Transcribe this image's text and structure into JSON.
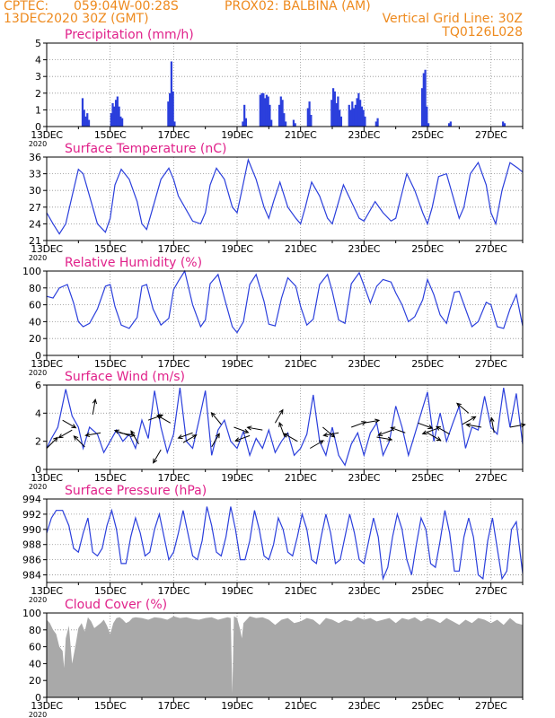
{
  "header": {
    "line1_left": "CPTEC:",
    "line1_coords": "059:04W-00:28S",
    "line1_station": "PROX02: BALBINA (AM)",
    "line2_left": "13DEC2020 30Z (GMT)",
    "line2_right": "Vertical Grid Line: 30Z",
    "line3_right": "TQ0126L028"
  },
  "colors": {
    "header": "#ee8a1e",
    "title": "#e0218a",
    "series": "#2b3fdc",
    "cloud": "#a9a9a9",
    "grid": "#909090"
  },
  "x_axis": {
    "days": 15,
    "tick_labels": [
      "13DEC",
      "15DEC",
      "17DEC",
      "19DEC",
      "21DEC",
      "23DEC",
      "25DEC",
      "27DEC"
    ],
    "tick_days": [
      0,
      2,
      4,
      6,
      8,
      10,
      12,
      14
    ],
    "year_label": "2020"
  },
  "chart_data": [
    {
      "name": "precip",
      "type": "bar",
      "title": "Precipitation (mm/h)",
      "ylim": [
        0,
        5
      ],
      "yticks": [
        0,
        1,
        2,
        3,
        4,
        5
      ],
      "bars": [
        [
          1.1,
          1.7
        ],
        [
          1.15,
          1.0
        ],
        [
          1.2,
          0.6
        ],
        [
          1.25,
          0.8
        ],
        [
          1.3,
          0.4
        ],
        [
          2.0,
          0.8
        ],
        [
          2.05,
          1.4
        ],
        [
          2.1,
          1.2
        ],
        [
          2.15,
          1.6
        ],
        [
          2.2,
          1.8
        ],
        [
          2.25,
          1.2
        ],
        [
          2.3,
          0.6
        ],
        [
          2.35,
          0.5
        ],
        [
          3.8,
          1.5
        ],
        [
          3.85,
          2.0
        ],
        [
          3.9,
          3.9
        ],
        [
          3.95,
          2.1
        ],
        [
          4.0,
          0.3
        ],
        [
          6.15,
          0.3
        ],
        [
          6.2,
          1.3
        ],
        [
          6.25,
          0.5
        ],
        [
          6.7,
          1.9
        ],
        [
          6.75,
          2.0
        ],
        [
          6.8,
          2.0
        ],
        [
          6.85,
          1.7
        ],
        [
          6.9,
          1.9
        ],
        [
          6.95,
          1.8
        ],
        [
          7.0,
          1.3
        ],
        [
          7.05,
          0.4
        ],
        [
          7.3,
          1.3
        ],
        [
          7.35,
          1.8
        ],
        [
          7.4,
          1.6
        ],
        [
          7.45,
          0.8
        ],
        [
          7.5,
          0.3
        ],
        [
          7.75,
          0.4
        ],
        [
          7.8,
          0.2
        ],
        [
          8.2,
          1.1
        ],
        [
          8.25,
          1.5
        ],
        [
          8.3,
          0.7
        ],
        [
          8.95,
          1.6
        ],
        [
          9.0,
          2.3
        ],
        [
          9.05,
          2.1
        ],
        [
          9.1,
          1.4
        ],
        [
          9.15,
          1.8
        ],
        [
          9.2,
          1.0
        ],
        [
          9.25,
          0.6
        ],
        [
          9.5,
          1.3
        ],
        [
          9.55,
          1.0
        ],
        [
          9.6,
          1.5
        ],
        [
          9.65,
          1.1
        ],
        [
          9.7,
          1.3
        ],
        [
          9.75,
          1.7
        ],
        [
          9.8,
          2.0
        ],
        [
          9.85,
          1.6
        ],
        [
          9.9,
          1.2
        ],
        [
          9.95,
          1.0
        ],
        [
          10.0,
          0.6
        ],
        [
          10.35,
          0.3
        ],
        [
          10.4,
          0.5
        ],
        [
          11.8,
          2.3
        ],
        [
          11.85,
          3.2
        ],
        [
          11.9,
          3.4
        ],
        [
          11.95,
          1.2
        ],
        [
          12.0,
          0.2
        ],
        [
          12.65,
          0.2
        ],
        [
          12.7,
          0.3
        ],
        [
          14.35,
          0.3
        ],
        [
          14.4,
          0.2
        ]
      ]
    },
    {
      "name": "temp",
      "type": "line",
      "title": "Surface Temperature (nC)",
      "ylim": [
        21,
        36
      ],
      "yticks": [
        21,
        24,
        27,
        30,
        33,
        36
      ],
      "ytick_labels": [
        "21",
        "24",
        "27",
        "30",
        "33",
        "36"
      ],
      "x": [
        0,
        0.2,
        0.4,
        0.6,
        0.8,
        1.0,
        1.15,
        1.35,
        1.6,
        1.85,
        2.0,
        2.15,
        2.35,
        2.6,
        2.85,
        3.0,
        3.15,
        3.35,
        3.6,
        3.85,
        4.0,
        4.15,
        4.3,
        4.6,
        4.85,
        5.0,
        5.15,
        5.35,
        5.6,
        5.85,
        6.0,
        6.15,
        6.35,
        6.6,
        6.85,
        7.0,
        7.15,
        7.35,
        7.6,
        7.85,
        8.0,
        8.15,
        8.35,
        8.6,
        8.85,
        9.0,
        9.15,
        9.35,
        9.6,
        9.85,
        10.0,
        10.15,
        10.35,
        10.6,
        10.85,
        11.0,
        11.15,
        11.35,
        11.6,
        11.85,
        12.0,
        12.15,
        12.35,
        12.6,
        12.85,
        13.0,
        13.15,
        13.35,
        13.6,
        13.85,
        14.0,
        14.15,
        14.35,
        14.6,
        14.85,
        15.0
      ],
      "y": [
        26,
        24,
        22.2,
        24,
        29,
        33.8,
        33,
        29,
        24,
        22.5,
        25,
        31,
        33.8,
        32,
        28,
        24,
        23,
        27,
        32,
        34,
        32,
        29,
        27.5,
        24.5,
        24,
        26,
        31,
        34,
        32,
        27,
        26,
        30,
        35.5,
        32,
        27,
        25,
        28,
        31.5,
        27,
        25,
        24,
        27,
        31.5,
        29,
        25,
        24,
        27,
        31,
        28,
        25,
        24.5,
        26,
        28,
        26,
        24.5,
        25,
        28.5,
        33,
        30,
        26,
        24,
        27,
        32.5,
        33,
        28,
        25,
        27,
        33,
        35,
        31,
        26,
        24,
        30,
        35,
        34,
        33.3
      ]
    },
    {
      "name": "rh",
      "type": "line",
      "title": "Relative Humidity (%)",
      "ylim": [
        0,
        100
      ],
      "yticks": [
        0,
        20,
        40,
        60,
        80,
        100
      ],
      "x": [
        0,
        0.2,
        0.4,
        0.65,
        0.85,
        1.0,
        1.15,
        1.35,
        1.6,
        1.85,
        2.0,
        2.15,
        2.35,
        2.6,
        2.85,
        3.0,
        3.15,
        3.35,
        3.6,
        3.85,
        4.0,
        4.15,
        4.35,
        4.6,
        4.85,
        5.0,
        5.15,
        5.4,
        5.6,
        5.85,
        6.0,
        6.2,
        6.4,
        6.6,
        6.85,
        7.0,
        7.2,
        7.4,
        7.6,
        7.85,
        8.0,
        8.2,
        8.4,
        8.6,
        8.85,
        9.0,
        9.2,
        9.4,
        9.6,
        9.85,
        10.0,
        10.2,
        10.4,
        10.6,
        10.85,
        11.0,
        11.2,
        11.4,
        11.6,
        11.85,
        12.0,
        12.2,
        12.4,
        12.6,
        12.85,
        13.0,
        13.2,
        13.4,
        13.6,
        13.85,
        14.0,
        14.2,
        14.4,
        14.6,
        14.8,
        15.0
      ],
      "y": [
        70,
        68,
        80,
        84,
        62,
        40,
        34,
        38,
        55,
        82,
        84,
        58,
        36,
        32,
        45,
        82,
        84,
        55,
        36,
        44,
        78,
        88,
        100,
        60,
        34,
        42,
        85,
        96,
        68,
        34,
        27,
        40,
        84,
        96,
        64,
        37,
        35,
        68,
        92,
        82,
        58,
        36,
        43,
        84,
        96,
        76,
        42,
        38,
        85,
        98,
        83,
        62,
        82,
        90,
        87,
        74,
        60,
        40,
        46,
        66,
        90,
        72,
        48,
        38,
        75,
        76,
        55,
        34,
        40,
        63,
        60,
        34,
        32,
        55,
        72,
        35
      ]
    },
    {
      "name": "wind",
      "type": "line",
      "title": "Surface Wind (m/s)",
      "ylim": [
        0,
        6
      ],
      "yticks": [
        0,
        2,
        4,
        6
      ],
      "x": [
        0,
        0.15,
        0.35,
        0.6,
        0.8,
        1.0,
        1.15,
        1.35,
        1.6,
        1.8,
        2.0,
        2.2,
        2.4,
        2.6,
        2.8,
        3.0,
        3.2,
        3.4,
        3.6,
        3.8,
        4.0,
        4.2,
        4.4,
        4.6,
        4.8,
        5.0,
        5.2,
        5.4,
        5.6,
        5.8,
        6.0,
        6.2,
        6.4,
        6.6,
        6.8,
        7.0,
        7.2,
        7.4,
        7.6,
        7.8,
        8.0,
        8.2,
        8.4,
        8.6,
        8.8,
        9.0,
        9.2,
        9.4,
        9.6,
        9.8,
        10.0,
        10.2,
        10.4,
        10.6,
        10.8,
        11.0,
        11.2,
        11.4,
        11.6,
        11.8,
        12.0,
        12.2,
        12.4,
        12.6,
        12.8,
        13.0,
        13.2,
        13.4,
        13.6,
        13.8,
        14.0,
        14.2,
        14.4,
        14.6,
        14.8,
        15.0
      ],
      "y": [
        1.5,
        2.2,
        3.0,
        5.7,
        3.8,
        3.0,
        1.5,
        3.0,
        2.5,
        1.2,
        2.0,
        2.8,
        2.0,
        2.5,
        1.5,
        3.5,
        2.2,
        5.6,
        3.0,
        1.2,
        2.5,
        5.8,
        2.0,
        1.5,
        3.5,
        5.6,
        1.0,
        2.8,
        3.5,
        2.0,
        1.5,
        2.7,
        1.0,
        2.2,
        1.5,
        2.8,
        1.2,
        2.0,
        2.6,
        1.0,
        1.5,
        2.5,
        5.3,
        2.0,
        1.0,
        3.0,
        1.0,
        0.3,
        1.8,
        2.6,
        1.0,
        2.6,
        3.3,
        1.0,
        2.0,
        4.5,
        3.0,
        1.0,
        2.5,
        4.0,
        5.5,
        2.0,
        4.0,
        2.0,
        3.3,
        4.5,
        1.5,
        3.0,
        2.8,
        5.2,
        3.0,
        2.5,
        5.8,
        3.0,
        5.4,
        1.8
      ],
      "arrows": [
        [
          0,
          1.5,
          45
        ],
        [
          0.5,
          3.5,
          -30
        ],
        [
          0.8,
          2.8,
          210
        ],
        [
          1.2,
          1.6,
          135
        ],
        [
          1.45,
          3.9,
          80
        ],
        [
          1.7,
          2.6,
          190
        ],
        [
          2.3,
          2.6,
          -10
        ],
        [
          2.6,
          2.4,
          160
        ],
        [
          2.9,
          1.8,
          120
        ],
        [
          3.2,
          3.5,
          20
        ],
        [
          3.6,
          1.4,
          240
        ],
        [
          3.9,
          3.3,
          150
        ],
        [
          4.3,
          1.9,
          30
        ],
        [
          4.6,
          2.6,
          200
        ],
        [
          5.2,
          1.6,
          60
        ],
        [
          5.5,
          3.2,
          130
        ],
        [
          5.9,
          3.0,
          -20
        ],
        [
          6.4,
          2.4,
          200
        ],
        [
          6.8,
          2.8,
          170
        ],
        [
          7.2,
          3.3,
          60
        ],
        [
          7.5,
          2.3,
          110
        ],
        [
          7.9,
          2.0,
          150
        ],
        [
          8.3,
          1.5,
          30
        ],
        [
          8.7,
          3.0,
          -40
        ],
        [
          9.2,
          2.6,
          190
        ],
        [
          9.6,
          3.0,
          20
        ],
        [
          10.0,
          3.3,
          10
        ],
        [
          10.4,
          2.3,
          -10
        ],
        [
          10.9,
          2.8,
          200
        ],
        [
          11.3,
          2.6,
          160
        ],
        [
          11.7,
          3.3,
          -20
        ],
        [
          12.0,
          2.6,
          -30
        ],
        [
          12.3,
          2.9,
          200
        ],
        [
          12.7,
          2.5,
          150
        ],
        [
          13.1,
          3.2,
          30
        ],
        [
          13.3,
          4.0,
          140
        ],
        [
          13.7,
          3.0,
          170
        ],
        [
          14.1,
          2.6,
          100
        ],
        [
          14.6,
          3.0,
          10
        ]
      ]
    },
    {
      "name": "pres",
      "type": "line",
      "title": "Surface Pressure (hPa)",
      "ylim": [
        983,
        994
      ],
      "yticks": [
        984,
        986,
        988,
        990,
        992,
        994
      ],
      "x": [
        0,
        0.15,
        0.3,
        0.5,
        0.7,
        0.85,
        1.0,
        1.15,
        1.3,
        1.45,
        1.6,
        1.75,
        1.9,
        2.05,
        2.2,
        2.35,
        2.5,
        2.65,
        2.8,
        2.95,
        3.1,
        3.25,
        3.4,
        3.55,
        3.7,
        3.85,
        4.0,
        4.15,
        4.3,
        4.45,
        4.6,
        4.75,
        4.9,
        5.05,
        5.2,
        5.35,
        5.5,
        5.65,
        5.8,
        5.95,
        6.1,
        6.25,
        6.4,
        6.55,
        6.7,
        6.85,
        7.0,
        7.15,
        7.3,
        7.45,
        7.6,
        7.75,
        7.9,
        8.05,
        8.2,
        8.35,
        8.5,
        8.65,
        8.8,
        8.95,
        9.1,
        9.25,
        9.4,
        9.55,
        9.7,
        9.85,
        10.0,
        10.15,
        10.3,
        10.45,
        10.6,
        10.75,
        10.9,
        11.05,
        11.2,
        11.35,
        11.5,
        11.65,
        11.8,
        11.95,
        12.1,
        12.25,
        12.4,
        12.55,
        12.7,
        12.85,
        13.0,
        13.15,
        13.3,
        13.45,
        13.6,
        13.75,
        13.9,
        14.05,
        14.2,
        14.35,
        14.5,
        14.65,
        14.8,
        15.0
      ],
      "y": [
        989.5,
        991.5,
        992.5,
        992.5,
        990.5,
        987.5,
        987.0,
        989.5,
        991.5,
        987.0,
        986.5,
        987.5,
        990.5,
        992.5,
        990.0,
        985.5,
        985.5,
        989.0,
        991.5,
        989.5,
        986.5,
        987.0,
        990.0,
        992.0,
        989.0,
        986.0,
        987.0,
        989.5,
        992.5,
        989.5,
        986.5,
        986.0,
        988.5,
        993.0,
        990.5,
        987.0,
        986.5,
        989.0,
        993.0,
        990.0,
        986.0,
        986.0,
        988.5,
        992.5,
        990.0,
        986.5,
        986.0,
        988.0,
        991.5,
        990.0,
        987.0,
        986.5,
        989.0,
        992.0,
        990.0,
        986.0,
        985.5,
        989.0,
        992.0,
        989.5,
        985.5,
        986.0,
        989.0,
        992.0,
        989.5,
        986.0,
        985.5,
        988.5,
        991.5,
        989.0,
        983.5,
        985.0,
        989.0,
        992.0,
        990.0,
        986.0,
        984.0,
        988.0,
        991.5,
        990.0,
        985.5,
        985.0,
        988.5,
        992.5,
        989.5,
        984.5,
        984.5,
        989.0,
        991.5,
        989.0,
        984.0,
        983.5,
        988.5,
        991.5,
        987.5,
        983.5,
        984.5,
        990.0,
        991.0,
        984.2
      ]
    },
    {
      "name": "cloud",
      "type": "area",
      "title": "Cloud Cover (%)",
      "ylim": [
        0,
        100
      ],
      "yticks": [
        0,
        20,
        40,
        60,
        80,
        100
      ],
      "x": [
        0,
        0.1,
        0.2,
        0.3,
        0.4,
        0.5,
        0.55,
        0.6,
        0.7,
        0.8,
        0.9,
        1.0,
        1.1,
        1.2,
        1.3,
        1.4,
        1.5,
        1.6,
        1.7,
        1.8,
        1.9,
        2.0,
        2.1,
        2.2,
        2.3,
        2.4,
        2.5,
        2.6,
        2.7,
        2.8,
        3.0,
        3.2,
        3.4,
        3.6,
        3.8,
        4.0,
        4.2,
        4.4,
        4.6,
        4.8,
        5.0,
        5.2,
        5.4,
        5.6,
        5.7,
        5.8,
        5.85,
        5.9,
        6.0,
        6.1,
        6.15,
        6.2,
        6.4,
        6.6,
        6.8,
        7.0,
        7.2,
        7.4,
        7.6,
        7.8,
        8.0,
        8.2,
        8.4,
        8.6,
        8.8,
        9.0,
        9.2,
        9.4,
        9.6,
        9.8,
        10.0,
        10.2,
        10.4,
        10.6,
        10.8,
        11.0,
        11.2,
        11.4,
        11.6,
        11.8,
        12.0,
        12.2,
        12.4,
        12.6,
        12.8,
        13.0,
        13.2,
        13.4,
        13.6,
        13.8,
        14.0,
        14.2,
        14.4,
        14.6,
        14.8,
        15.0
      ],
      "y": [
        92,
        88,
        80,
        75,
        60,
        55,
        35,
        70,
        85,
        40,
        60,
        82,
        88,
        78,
        95,
        90,
        82,
        85,
        88,
        92,
        85,
        75,
        88,
        94,
        95,
        92,
        88,
        90,
        94,
        95,
        94,
        92,
        95,
        94,
        92,
        96,
        94,
        95,
        93,
        92,
        94,
        95,
        92,
        94,
        95,
        94,
        5,
        96,
        94,
        80,
        70,
        88,
        96,
        94,
        95,
        92,
        86,
        92,
        94,
        88,
        90,
        94,
        92,
        86,
        94,
        92,
        88,
        92,
        90,
        95,
        92,
        94,
        90,
        92,
        94,
        88,
        94,
        92,
        95,
        90,
        94,
        92,
        88,
        94,
        90,
        86,
        92,
        88,
        94,
        92,
        88,
        92,
        86,
        94,
        88,
        86
      ]
    }
  ]
}
